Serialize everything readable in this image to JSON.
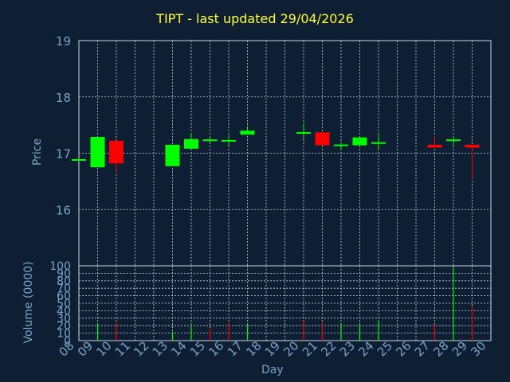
{
  "chart_data": [
    {
      "type": "candlestick",
      "title": "TIPT - last updated 29/04/2026",
      "ylabel": "Price",
      "ylim": [
        15.0,
        19.0
      ],
      "yticks": [
        16,
        17,
        18,
        19
      ],
      "x_ticks": [
        "08",
        "09",
        "10",
        "11",
        "12",
        "13",
        "14",
        "15",
        "16",
        "17",
        "18",
        "19",
        "20",
        "21",
        "22",
        "23",
        "24",
        "25",
        "26",
        "27",
        "28",
        "29",
        "30"
      ],
      "grid": true,
      "candles": [
        {
          "day": "08",
          "open": 16.88,
          "high": 16.88,
          "low": 16.88,
          "close": 16.88
        },
        {
          "day": "09",
          "open": 16.75,
          "high": 17.29,
          "low": 16.75,
          "close": 17.29
        },
        {
          "day": "10",
          "open": 17.22,
          "high": 17.22,
          "low": 16.65,
          "close": 16.82
        },
        {
          "day": "13",
          "open": 16.77,
          "high": 17.15,
          "low": 16.77,
          "close": 17.15
        },
        {
          "day": "14",
          "open": 17.08,
          "high": 17.36,
          "low": 17.08,
          "close": 17.25
        },
        {
          "day": "15",
          "open": 17.23,
          "high": 17.3,
          "low": 17.17,
          "close": 17.23
        },
        {
          "day": "16",
          "open": 17.22,
          "high": 17.32,
          "low": 17.12,
          "close": 17.22
        },
        {
          "day": "17",
          "open": 17.33,
          "high": 17.48,
          "low": 17.33,
          "close": 17.4
        },
        {
          "day": "20",
          "open": 17.36,
          "high": 17.53,
          "low": 17.25,
          "close": 17.36
        },
        {
          "day": "21",
          "open": 17.37,
          "high": 17.37,
          "low": 17.14,
          "close": 17.14
        },
        {
          "day": "22",
          "open": 17.12,
          "high": 17.2,
          "low": 17.05,
          "close": 17.14
        },
        {
          "day": "23",
          "open": 17.14,
          "high": 17.28,
          "low": 17.14,
          "close": 17.28
        },
        {
          "day": "24",
          "open": 17.17,
          "high": 17.33,
          "low": 17.06,
          "close": 17.18
        },
        {
          "day": "27",
          "open": 17.15,
          "high": 17.3,
          "low": 17.1,
          "close": 17.1
        },
        {
          "day": "28",
          "open": 17.22,
          "high": 17.3,
          "low": 17.13,
          "close": 17.23
        },
        {
          "day": "29",
          "open": 17.15,
          "high": 17.15,
          "low": 16.55,
          "close": 17.1
        }
      ]
    },
    {
      "type": "bar",
      "ylabel": "Volume (0000)",
      "xlabel": "Day",
      "ylim": [
        0,
        100
      ],
      "yticks": [
        0,
        10,
        20,
        30,
        40,
        50,
        60,
        70,
        80,
        90,
        100
      ],
      "categories": [
        "09",
        "10",
        "13",
        "14",
        "15",
        "16",
        "17",
        "20",
        "21",
        "22",
        "23",
        "24",
        "27",
        "28",
        "29"
      ],
      "values": [
        23,
        24,
        12,
        20,
        15,
        23,
        23,
        26,
        24,
        23,
        22,
        27,
        22,
        98,
        46
      ],
      "colors": [
        "#00ff00",
        "#ff0000",
        "#00ff00",
        "#00ff00",
        "#ff0000",
        "#ff0000",
        "#00ff00",
        "#ff0000",
        "#ff0000",
        "#00ff00",
        "#00ff00",
        "#00ff00",
        "#ff0000",
        "#00ff00",
        "#ff0000"
      ]
    }
  ],
  "colors": {
    "up": "#00ff00",
    "down": "#ff0000",
    "axis": "#7aa3cc",
    "title": "#ffff33",
    "background": "#0f1f33",
    "grid": "#c8d4e0"
  }
}
